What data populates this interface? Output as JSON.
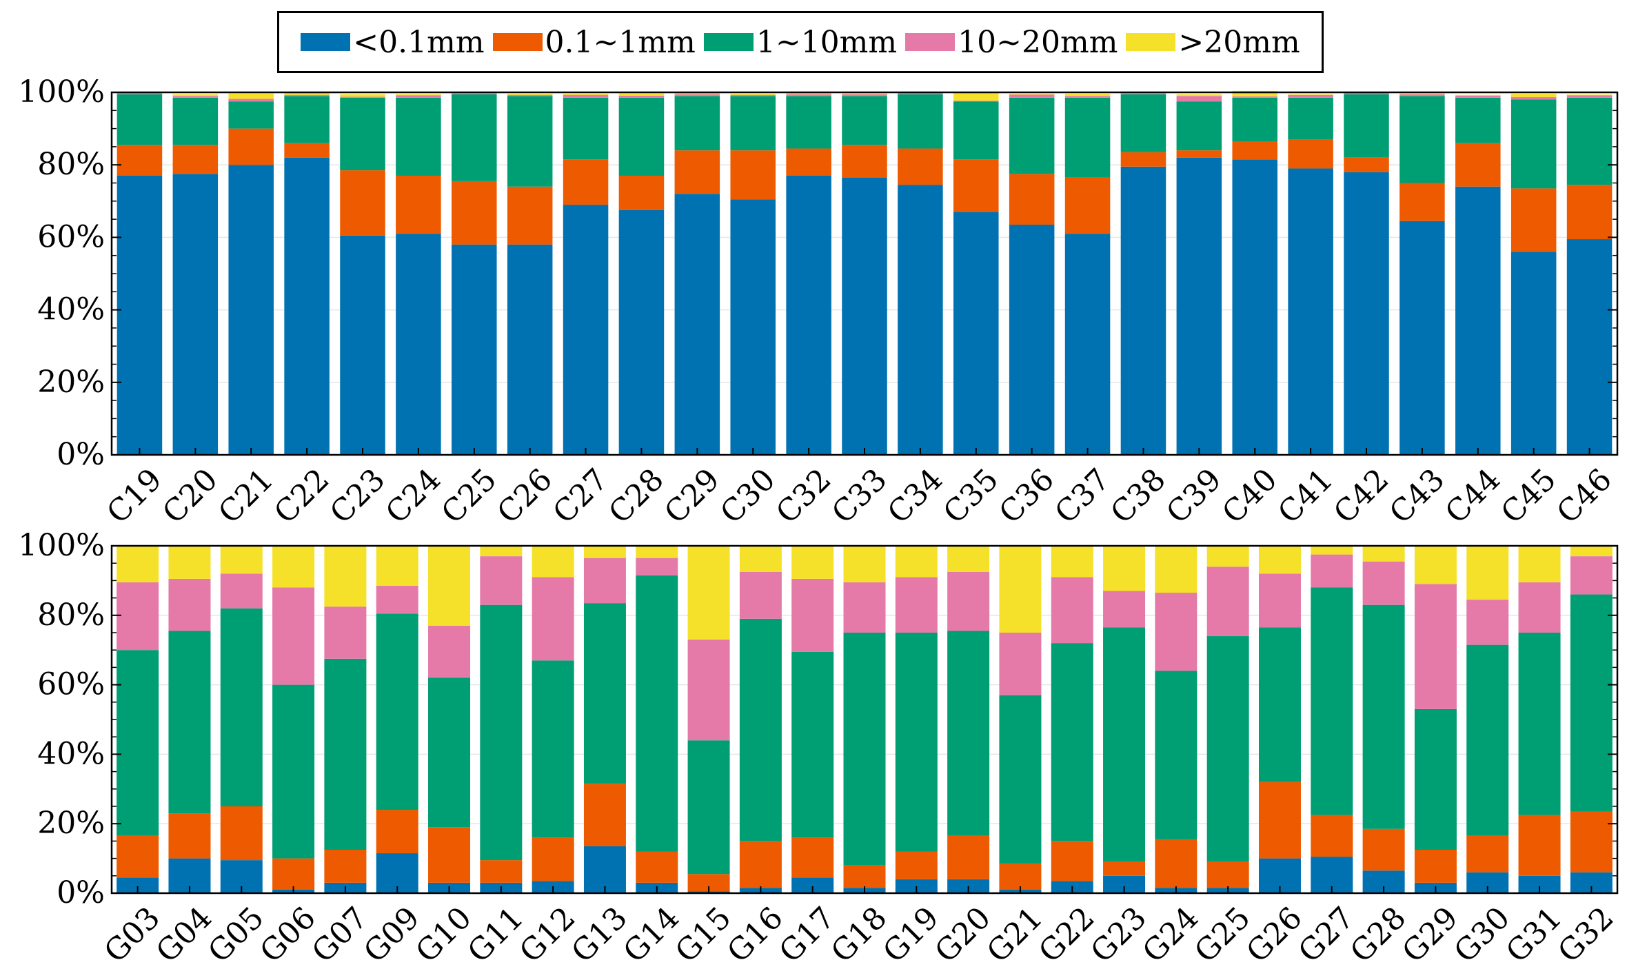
{
  "legend": [
    {
      "label": "<0.1mm",
      "color": "#0072b2"
    },
    {
      "label": "0.1~1mm",
      "color": "#ee5a00"
    },
    {
      "label": "1~10mm",
      "color": "#009e73"
    },
    {
      "label": "10~20mm",
      "color": "#e57aa9"
    },
    {
      "label": ">20mm",
      "color": "#f5e12a"
    }
  ],
  "chart_data": [
    {
      "type": "bar",
      "stacked": true,
      "ylim": [
        0,
        100
      ],
      "yticks": [
        "0%",
        "20%",
        "40%",
        "60%",
        "80%",
        "100%"
      ],
      "categories": [
        "C19",
        "C20",
        "C21",
        "C22",
        "C23",
        "C24",
        "C25",
        "C26",
        "C27",
        "C28",
        "C29",
        "C30",
        "C32",
        "C33",
        "C34",
        "C35",
        "C36",
        "C37",
        "C38",
        "C39",
        "C40",
        "C41",
        "C42",
        "C43",
        "C44",
        "C45",
        "C46"
      ],
      "series": [
        {
          "name": "<0.1mm",
          "values": [
            77,
            77.5,
            80,
            82,
            60.5,
            61,
            58,
            58,
            69,
            67.5,
            72,
            70.5,
            77,
            76.5,
            74.5,
            67,
            63.5,
            61,
            79.5,
            82,
            81.5,
            79,
            78,
            64.5,
            74,
            56,
            59.5
          ]
        },
        {
          "name": "0.1~1mm",
          "values": [
            8.5,
            8,
            10,
            4,
            18,
            16,
            17.5,
            16,
            12.5,
            9.5,
            12,
            13.5,
            7.5,
            9,
            10,
            14.5,
            14,
            15.5,
            4,
            2,
            5,
            8,
            4,
            10.5,
            12,
            17.5,
            15
          ]
        },
        {
          "name": "1~10mm",
          "values": [
            14,
            13,
            7.5,
            13,
            20,
            21.5,
            24,
            25,
            17,
            21.5,
            15,
            15,
            14.5,
            13.5,
            15,
            16,
            21,
            22,
            16,
            13.5,
            12,
            11.5,
            17.5,
            24,
            12.5,
            24.5,
            24
          ]
        },
        {
          "name": "10~20mm",
          "values": [
            0.3,
            0.5,
            0.7,
            0.3,
            0.3,
            0.7,
            0.2,
            0.3,
            0.8,
            0.6,
            0.5,
            0.3,
            0.5,
            0.5,
            0.3,
            0.2,
            0.9,
            0.5,
            0.2,
            1.5,
            0.4,
            0.8,
            0.3,
            0.5,
            0.6,
            0.7,
            0.7
          ]
        },
        {
          "name": ">20mm",
          "values": [
            0.2,
            0.5,
            1.5,
            0.5,
            0.7,
            0.3,
            0.3,
            0.3,
            0.3,
            0.6,
            0.5,
            0.3,
            0.3,
            0.2,
            0.1,
            2.3,
            0.2,
            0.6,
            0.3,
            0.5,
            1.5,
            0.2,
            0.2,
            0.2,
            0.2,
            0.9,
            0.2
          ]
        }
      ]
    },
    {
      "type": "bar",
      "stacked": true,
      "ylim": [
        0,
        100
      ],
      "yticks": [
        "0%",
        "20%",
        "40%",
        "60%",
        "80%",
        "100%"
      ],
      "categories": [
        "G03",
        "G04",
        "G05",
        "G06",
        "G07",
        "G09",
        "G10",
        "G11",
        "G12",
        "G13",
        "G14",
        "G15",
        "G16",
        "G17",
        "G18",
        "G19",
        "G20",
        "G21",
        "G22",
        "G23",
        "G24",
        "G25",
        "G26",
        "G27",
        "G28",
        "G29",
        "G30",
        "G31",
        "G32"
      ],
      "series": [
        {
          "name": "<0.1mm",
          "values": [
            4.5,
            10,
            9.5,
            1,
            3,
            11.5,
            3,
            3,
            3.5,
            13.5,
            3,
            0.5,
            1.5,
            4.5,
            1.5,
            4,
            4,
            1,
            3.5,
            5,
            1.5,
            1.5,
            10,
            10.5,
            6.5,
            3,
            6,
            5,
            6
          ]
        },
        {
          "name": "0.1~1mm",
          "values": [
            12,
            13,
            15.5,
            9,
            9.5,
            12.5,
            16,
            6.5,
            12.5,
            18,
            9,
            5,
            13.5,
            11.5,
            6.5,
            8,
            12.5,
            7.5,
            11.5,
            4,
            14,
            7.5,
            22,
            12,
            12,
            9.5,
            10.5,
            17.5,
            17.5
          ]
        },
        {
          "name": "1~10mm",
          "values": [
            53.5,
            52.5,
            57,
            50,
            55,
            56.5,
            43,
            73.5,
            51,
            52,
            79.5,
            38.5,
            64,
            53.5,
            67,
            63,
            59,
            48.5,
            57,
            67.5,
            48.5,
            65,
            44.5,
            65.5,
            64.5,
            40.5,
            55,
            52.5,
            62.5
          ]
        },
        {
          "name": "10~20mm",
          "values": [
            19.5,
            15,
            10,
            28,
            15,
            8,
            15,
            14,
            24,
            13,
            5,
            29,
            13.5,
            21,
            14.5,
            16,
            17,
            18,
            19,
            10.5,
            22.5,
            20,
            15.5,
            9.5,
            12.5,
            36,
            13,
            14.5,
            11
          ]
        },
        {
          "name": ">20mm",
          "values": [
            10.5,
            9.5,
            8,
            12,
            17.5,
            11.5,
            23,
            3,
            9,
            3.5,
            3.5,
            27,
            7.5,
            9.5,
            10.5,
            9,
            7.5,
            25,
            9,
            13,
            13.5,
            6,
            8,
            2.5,
            4.5,
            11,
            15.5,
            10.5,
            3
          ]
        }
      ]
    }
  ]
}
